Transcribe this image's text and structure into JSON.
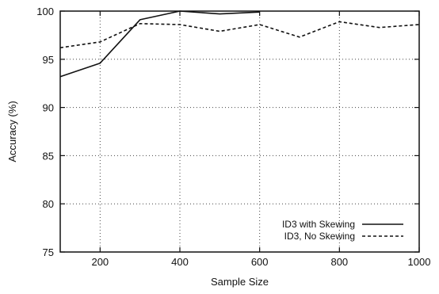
{
  "chart_data": {
    "type": "line",
    "title": "",
    "xlabel": "Sample Size",
    "ylabel": "Accuracy (%)",
    "xlim": [
      100,
      1000
    ],
    "ylim": [
      75,
      100
    ],
    "xticks": [
      "200",
      "400",
      "600",
      "800",
      "1000"
    ],
    "yticks": [
      "75",
      "80",
      "85",
      "90",
      "95",
      "100"
    ],
    "grid": true,
    "legend_position": "bottom-right",
    "series": [
      {
        "name": "ID3 with Skewing",
        "style": "solid",
        "x": [
          100,
          200,
          300,
          400,
          500,
          600
        ],
        "values": [
          93.2,
          94.6,
          99.1,
          100.0,
          99.7,
          99.9
        ]
      },
      {
        "name": "ID3, No Skewing",
        "style": "dashed",
        "x": [
          100,
          200,
          300,
          400,
          500,
          600,
          700,
          800,
          900,
          1000
        ],
        "values": [
          96.2,
          96.8,
          98.7,
          98.6,
          97.9,
          98.6,
          97.3,
          98.9,
          98.3,
          98.6
        ]
      }
    ]
  }
}
